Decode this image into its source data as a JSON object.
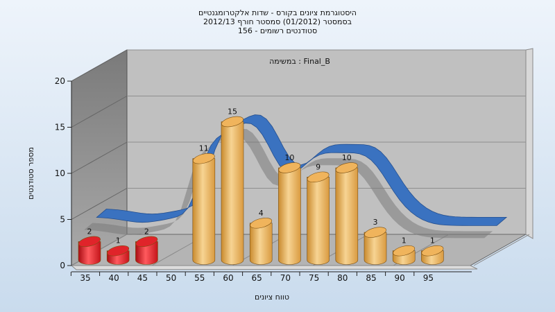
{
  "chart_data": {
    "type": "bar",
    "title_lines": [
      "היסטוגרמת ציונים בקורס - שדות אלקטרומגנטיים",
      "בסמסטר  (01/2012)  סמסטר חורף 2012/13",
      "סטודנטים רשומים - 156"
    ],
    "annotation": "במשימה : Final_B",
    "xlabel": "טווח ציונים",
    "ylabel": "מספר סטודנטים",
    "ylim": [
      0,
      20
    ],
    "y_ticks": [
      0,
      5,
      10,
      15,
      20
    ],
    "x_ticks": [
      "35",
      "40",
      "45",
      "50",
      "55",
      "60",
      "65",
      "70",
      "75",
      "80",
      "85",
      "90",
      "95"
    ],
    "bars": [
      {
        "x": 35,
        "value": 2,
        "label": "2",
        "color": "#e0242a"
      },
      {
        "x": 40,
        "value": 1,
        "label": "1",
        "color": "#e0242a"
      },
      {
        "x": 45,
        "value": 2,
        "label": "2",
        "color": "#e0242a"
      },
      {
        "x": 55,
        "value": 11,
        "label": "11",
        "color": "#f0b45c"
      },
      {
        "x": 60,
        "value": 15,
        "label": "15",
        "color": "#f0b45c"
      },
      {
        "x": 65,
        "value": 4,
        "label": "4",
        "color": "#f0b45c"
      },
      {
        "x": 70,
        "value": 10,
        "label": "10",
        "color": "#f0b45c"
      },
      {
        "x": 75,
        "value": 9,
        "label": "9",
        "color": "#f0b45c"
      },
      {
        "x": 80,
        "value": 10,
        "label": "10",
        "color": "#f0b45c"
      },
      {
        "x": 85,
        "value": 3,
        "label": "3",
        "color": "#f0b45c"
      },
      {
        "x": 90,
        "value": 1,
        "label": "1",
        "color": "#f0b45c"
      },
      {
        "x": 95,
        "value": 1,
        "label": "1",
        "color": "#f0b45c"
      }
    ],
    "curve_color": "#3a72c0",
    "grid": true
  }
}
